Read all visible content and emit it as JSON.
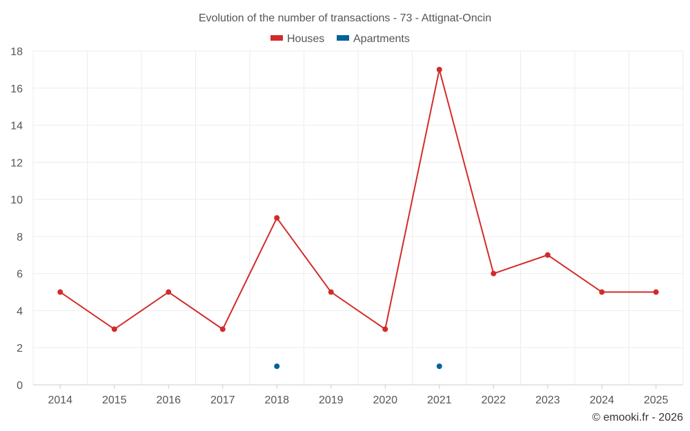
{
  "chart_data": {
    "type": "line",
    "title": "Evolution of the number of transactions - 73 - Attignat-Oncin",
    "categories": [
      "2014",
      "2015",
      "2016",
      "2017",
      "2018",
      "2019",
      "2020",
      "2021",
      "2022",
      "2023",
      "2024",
      "2025"
    ],
    "series": [
      {
        "name": "Houses",
        "color": "#d32a2a",
        "values": [
          5,
          3,
          5,
          3,
          9,
          5,
          3,
          17,
          6,
          7,
          5,
          5
        ]
      },
      {
        "name": "Apartments",
        "color": "#00629b",
        "values": [
          null,
          null,
          null,
          null,
          1,
          null,
          null,
          1,
          null,
          null,
          null,
          null
        ]
      }
    ],
    "ylim": [
      0,
      18
    ],
    "yticks": [
      0,
      2,
      4,
      6,
      8,
      10,
      12,
      14,
      16,
      18
    ],
    "xlabel": "",
    "ylabel": "",
    "grid": true,
    "legend_position": "top-center"
  },
  "credit": "© emooki.fr - 2026"
}
